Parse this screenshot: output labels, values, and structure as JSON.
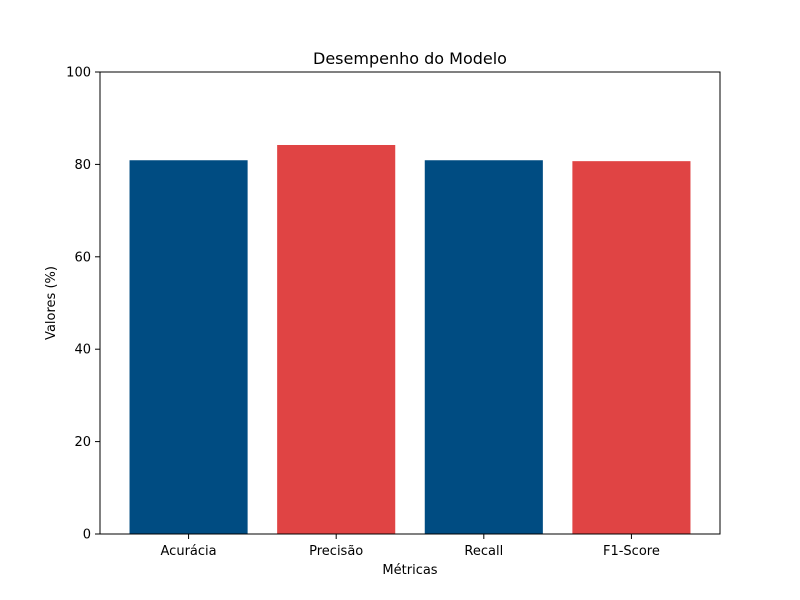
{
  "chart_data": {
    "type": "bar",
    "title": "Desempenho do Modelo",
    "xlabel": "Métricas",
    "ylabel": "Valores (%)",
    "categories": [
      "Acurácia",
      "Precisão",
      "Recall",
      "F1-Score"
    ],
    "values": [
      80.9,
      84.2,
      80.9,
      80.7
    ],
    "ylim": [
      0,
      100
    ],
    "yticks": [
      0,
      20,
      40,
      60,
      80,
      100
    ],
    "colors": [
      "#004c82",
      "#e04444",
      "#004c82",
      "#e04444"
    ],
    "grid": false,
    "legend": "none"
  }
}
